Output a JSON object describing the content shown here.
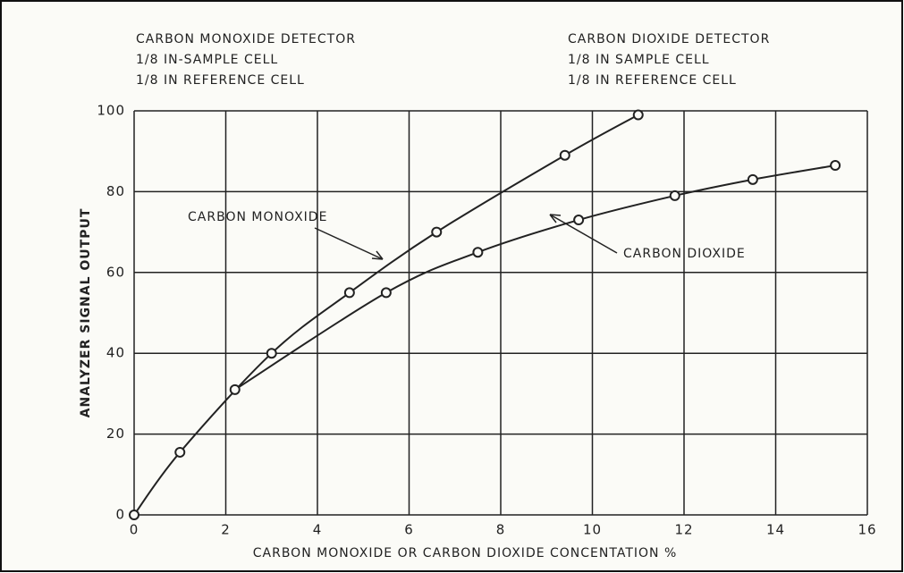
{
  "chart_data": {
    "type": "line",
    "xlabel": "CARBON MONOXIDE OR CARBON DIOXIDE CONCENTATION %",
    "ylabel": "ANALYZER SIGNAL OUTPUT",
    "annotations": [
      [
        "CARBON MONOXIDE DETECTOR",
        "1/8 IN-SAMPLE CELL",
        "1/8 IN REFERENCE CELL"
      ],
      [
        "CARBON DIOXIDE DETECTOR",
        "1/8 IN SAMPLE CELL",
        "1/8 IN REFERENCE CELL"
      ]
    ],
    "series": [
      {
        "name": "CARBON MONOXIDE",
        "color": "#222222",
        "x": [
          0,
          1,
          3,
          4.7,
          6.6,
          9.4,
          11
        ],
        "values": [
          0,
          15.5,
          40,
          55,
          70,
          89,
          99
        ]
      },
      {
        "name": "CARBON DIOXIDE",
        "color": "#222222",
        "x": [
          2.2,
          5.5,
          7.5,
          9.7,
          11.8,
          13.5,
          15.3
        ],
        "values": [
          31,
          55,
          65,
          73,
          79,
          83,
          86.5
        ]
      }
    ],
    "xlim": [
      0,
      16
    ],
    "xticks": [
      0,
      2,
      4,
      6,
      8,
      10,
      12,
      14,
      16
    ],
    "ylim": [
      0,
      100
    ],
    "yticks": [
      0,
      20,
      40,
      60,
      80,
      100
    ],
    "grid": true
  }
}
